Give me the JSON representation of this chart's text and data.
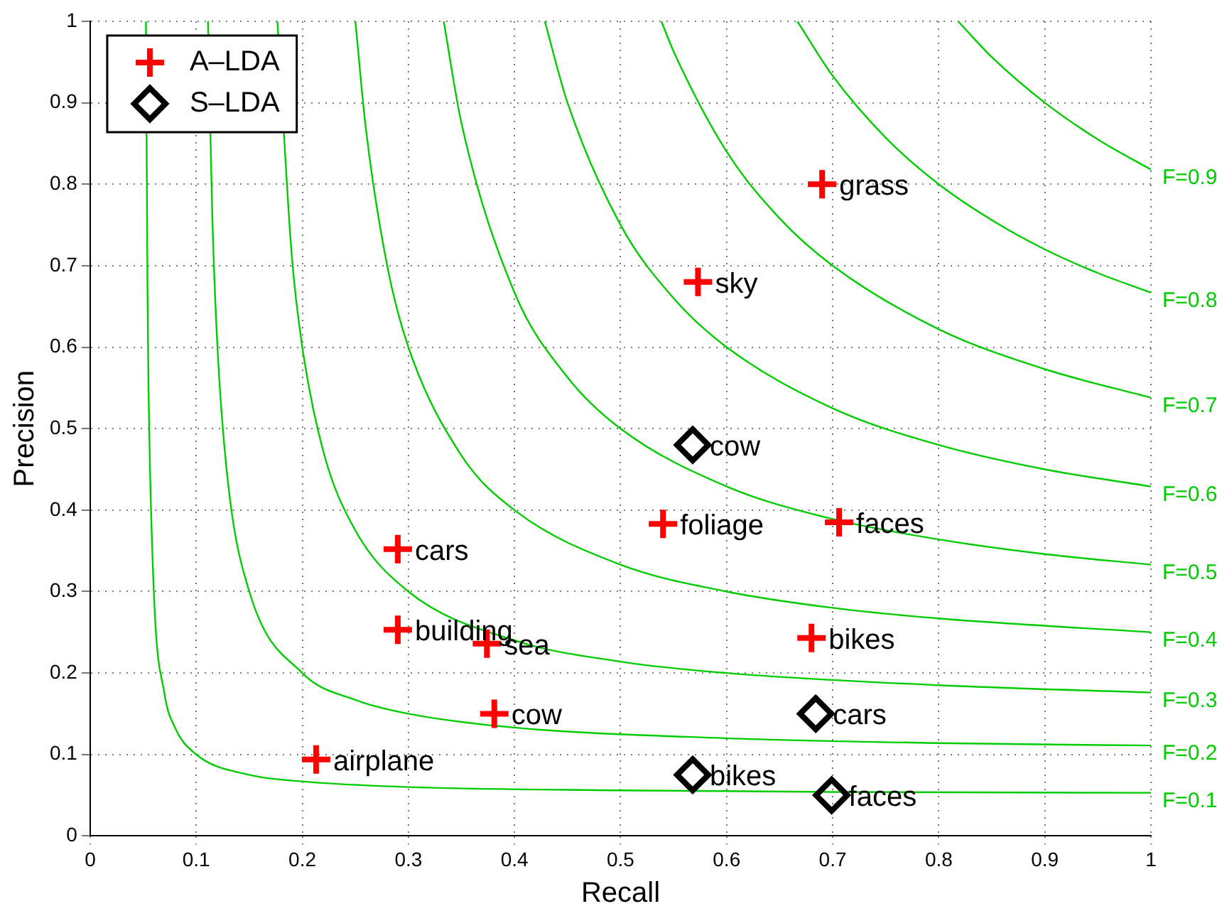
{
  "chart_data": {
    "type": "scatter",
    "xlabel": "Recall",
    "ylabel": "Precision",
    "xlim": [
      0,
      1
    ],
    "ylim": [
      0,
      1
    ],
    "xticks": [
      0,
      0.1,
      0.2,
      0.3,
      0.4,
      0.5,
      0.6,
      0.7,
      0.8,
      0.9,
      1
    ],
    "yticks": [
      0,
      0.1,
      0.2,
      0.3,
      0.4,
      0.5,
      0.6,
      0.7,
      0.8,
      0.9,
      1
    ],
    "grid": true,
    "legend": "top left",
    "series": [
      {
        "name": "A–LDA",
        "color": "#ff0000",
        "marker": "cross",
        "x": [
          0.69,
          0.573,
          0.54,
          0.706,
          0.29,
          0.29,
          0.374,
          0.68,
          0.381,
          0.213
        ],
        "values": [
          0.8,
          0.68,
          0.383,
          0.385,
          0.352,
          0.253,
          0.236,
          0.243,
          0.15,
          0.094
        ]
      },
      {
        "name": "S–LDA",
        "color": "#000000",
        "marker": "diamond",
        "x": [
          0.568,
          0.684,
          0.568,
          0.699
        ],
        "values": [
          0.48,
          0.15,
          0.075,
          0.05
        ]
      },
      {
        "name": "F=0.1",
        "type": "line",
        "color": "#00cc00",
        "marker": "none",
        "x": [
          0.0526,
          0.054,
          0.055,
          0.06,
          0.07,
          0.08,
          0.1,
          0.15,
          0.2,
          0.3,
          0.5,
          0.7,
          1
        ],
        "values": [
          1,
          0.675,
          0.55,
          0.3,
          0.175,
          0.133,
          0.1,
          0.075,
          0.067,
          0.06,
          0.056,
          0.054,
          0.053
        ]
      },
      {
        "name": "F=0.2",
        "type": "line",
        "color": "#00cc00",
        "marker": "none",
        "x": [
          0.1111,
          0.115,
          0.12,
          0.13,
          0.15,
          0.2,
          0.25,
          0.3,
          0.4,
          0.6,
          0.8,
          1
        ],
        "values": [
          1,
          0.767,
          0.6,
          0.433,
          0.3,
          0.2,
          0.167,
          0.15,
          0.133,
          0.12,
          0.114,
          0.111
        ]
      },
      {
        "name": "F=0.3",
        "type": "line",
        "color": "#00cc00",
        "marker": "none",
        "x": [
          0.1765,
          0.19,
          0.2,
          0.22,
          0.25,
          0.3,
          0.4,
          0.5,
          0.6,
          0.8,
          1
        ],
        "values": [
          1,
          0.713,
          0.6,
          0.471,
          0.375,
          0.3,
          0.24,
          0.214,
          0.2,
          0.185,
          0.176
        ]
      },
      {
        "name": "F=0.4",
        "type": "line",
        "color": "#00cc00",
        "marker": "none",
        "x": [
          0.25,
          0.26,
          0.28,
          0.3,
          0.35,
          0.4,
          0.5,
          0.6,
          0.7,
          0.8,
          1
        ],
        "values": [
          1,
          0.867,
          0.7,
          0.6,
          0.467,
          0.4,
          0.333,
          0.3,
          0.28,
          0.267,
          0.25
        ]
      },
      {
        "name": "F=0.5",
        "type": "line",
        "color": "#00cc00",
        "marker": "none",
        "x": [
          0.3333,
          0.35,
          0.4,
          0.45,
          0.5,
          0.6,
          0.7,
          0.8,
          0.9,
          1
        ],
        "values": [
          1,
          0.875,
          0.667,
          0.563,
          0.5,
          0.429,
          0.389,
          0.364,
          0.346,
          0.333
        ]
      },
      {
        "name": "F=0.6",
        "type": "line",
        "color": "#00cc00",
        "marker": "none",
        "x": [
          0.4286,
          0.45,
          0.5,
          0.55,
          0.6,
          0.7,
          0.8,
          0.9,
          1
        ],
        "values": [
          1,
          0.9,
          0.75,
          0.66,
          0.6,
          0.525,
          0.48,
          0.45,
          0.429
        ]
      },
      {
        "name": "F=0.7",
        "type": "line",
        "color": "#00cc00",
        "marker": "none",
        "x": [
          0.5385,
          0.55,
          0.6,
          0.65,
          0.7,
          0.8,
          0.9,
          1
        ],
        "values": [
          1,
          0.963,
          0.84,
          0.758,
          0.7,
          0.622,
          0.573,
          0.538
        ]
      },
      {
        "name": "F=0.8",
        "type": "line",
        "color": "#00cc00",
        "marker": "none",
        "x": [
          0.6667,
          0.7,
          0.75,
          0.8,
          0.85,
          0.9,
          0.95,
          1
        ],
        "values": [
          1,
          0.933,
          0.857,
          0.8,
          0.756,
          0.72,
          0.691,
          0.667
        ]
      },
      {
        "name": "F=0.9",
        "type": "line",
        "color": "#00cc00",
        "marker": "none",
        "x": [
          0.8182,
          0.85,
          0.9,
          0.95,
          1
        ],
        "values": [
          1,
          0.956,
          0.9,
          0.855,
          0.818
        ]
      }
    ],
    "annotations": [
      {
        "text": "grass",
        "x": 0.69,
        "y": 0.8
      },
      {
        "text": "sky",
        "x": 0.573,
        "y": 0.68
      },
      {
        "text": "foliage",
        "x": 0.54,
        "y": 0.383
      },
      {
        "text": "faces",
        "x": 0.706,
        "y": 0.385
      },
      {
        "text": "cars",
        "x": 0.29,
        "y": 0.352
      },
      {
        "text": "building",
        "x": 0.29,
        "y": 0.253
      },
      {
        "text": "sea",
        "x": 0.374,
        "y": 0.236
      },
      {
        "text": "bikes",
        "x": 0.68,
        "y": 0.243
      },
      {
        "text": "cow",
        "x": 0.381,
        "y": 0.15
      },
      {
        "text": "airplane",
        "x": 0.213,
        "y": 0.094
      },
      {
        "text": "cow",
        "x": 0.568,
        "y": 0.48
      },
      {
        "text": "cars",
        "x": 0.684,
        "y": 0.15
      },
      {
        "text": "bikes",
        "x": 0.568,
        "y": 0.075
      },
      {
        "text": "faces",
        "x": 0.699,
        "y": 0.05
      }
    ]
  }
}
